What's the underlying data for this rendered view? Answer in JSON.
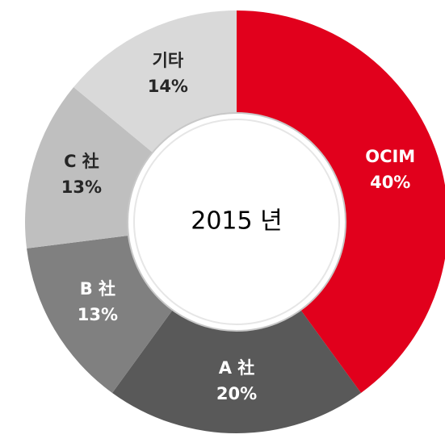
{
  "chart_data": {
    "type": "donut",
    "center_label": "2015 년",
    "categories": [
      "OCIM",
      "A 社",
      "B 社",
      "C 社",
      "기타"
    ],
    "values": [
      40,
      20,
      13,
      13,
      14
    ],
    "value_labels": [
      "40%",
      "20%",
      "13%",
      "13%",
      "14%"
    ],
    "colors": [
      "#e1001c",
      "#595959",
      "#808080",
      "#bfbfbf",
      "#d9d9d9"
    ]
  }
}
